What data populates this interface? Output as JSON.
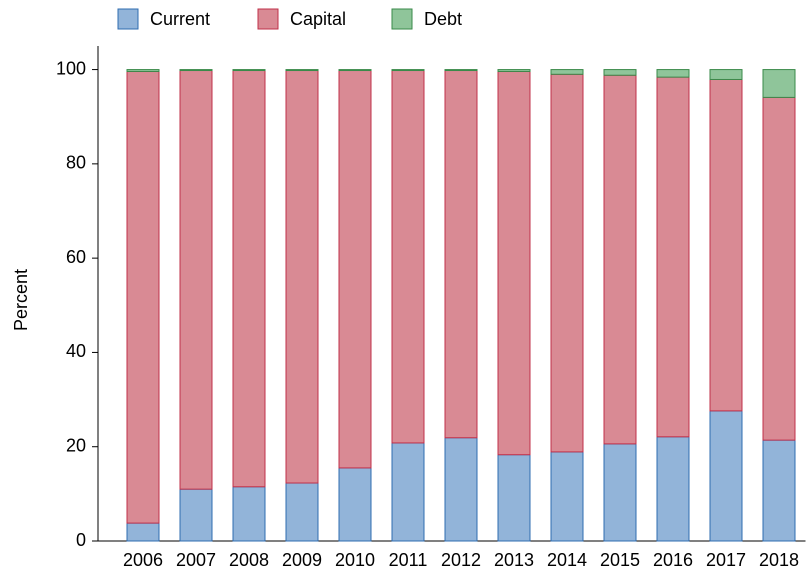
{
  "chart_data": {
    "type": "stacked-bar",
    "y_label": "Percent",
    "categories": [
      "2006",
      "2007",
      "2008",
      "2009",
      "2010",
      "2011",
      "2012",
      "2013",
      "2014",
      "2015",
      "2016",
      "2017",
      "2018"
    ],
    "series": [
      {
        "name": "Current",
        "color": "#92b4d9",
        "edge": "#2f6cb0",
        "values": [
          3.8,
          11.0,
          11.5,
          12.3,
          15.5,
          20.8,
          21.9,
          18.3,
          18.9,
          20.6,
          22.1,
          27.6,
          21.4
        ]
      },
      {
        "name": "Capital",
        "color": "#d98a94",
        "edge": "#c0304a",
        "values": [
          95.8,
          88.8,
          88.3,
          87.5,
          84.3,
          79.0,
          77.9,
          81.3,
          80.1,
          78.2,
          76.3,
          70.3,
          72.7
        ]
      },
      {
        "name": "Debt",
        "color": "#8fc59a",
        "edge": "#3a8a4a",
        "values": [
          0.4,
          0.2,
          0.2,
          0.2,
          0.2,
          0.2,
          0.2,
          0.4,
          1.0,
          1.2,
          1.6,
          2.1,
          5.9
        ]
      }
    ],
    "ylim": [
      0,
      105
    ],
    "yticks": [
      0,
      20,
      40,
      60,
      80,
      100
    ],
    "grid": false
  }
}
